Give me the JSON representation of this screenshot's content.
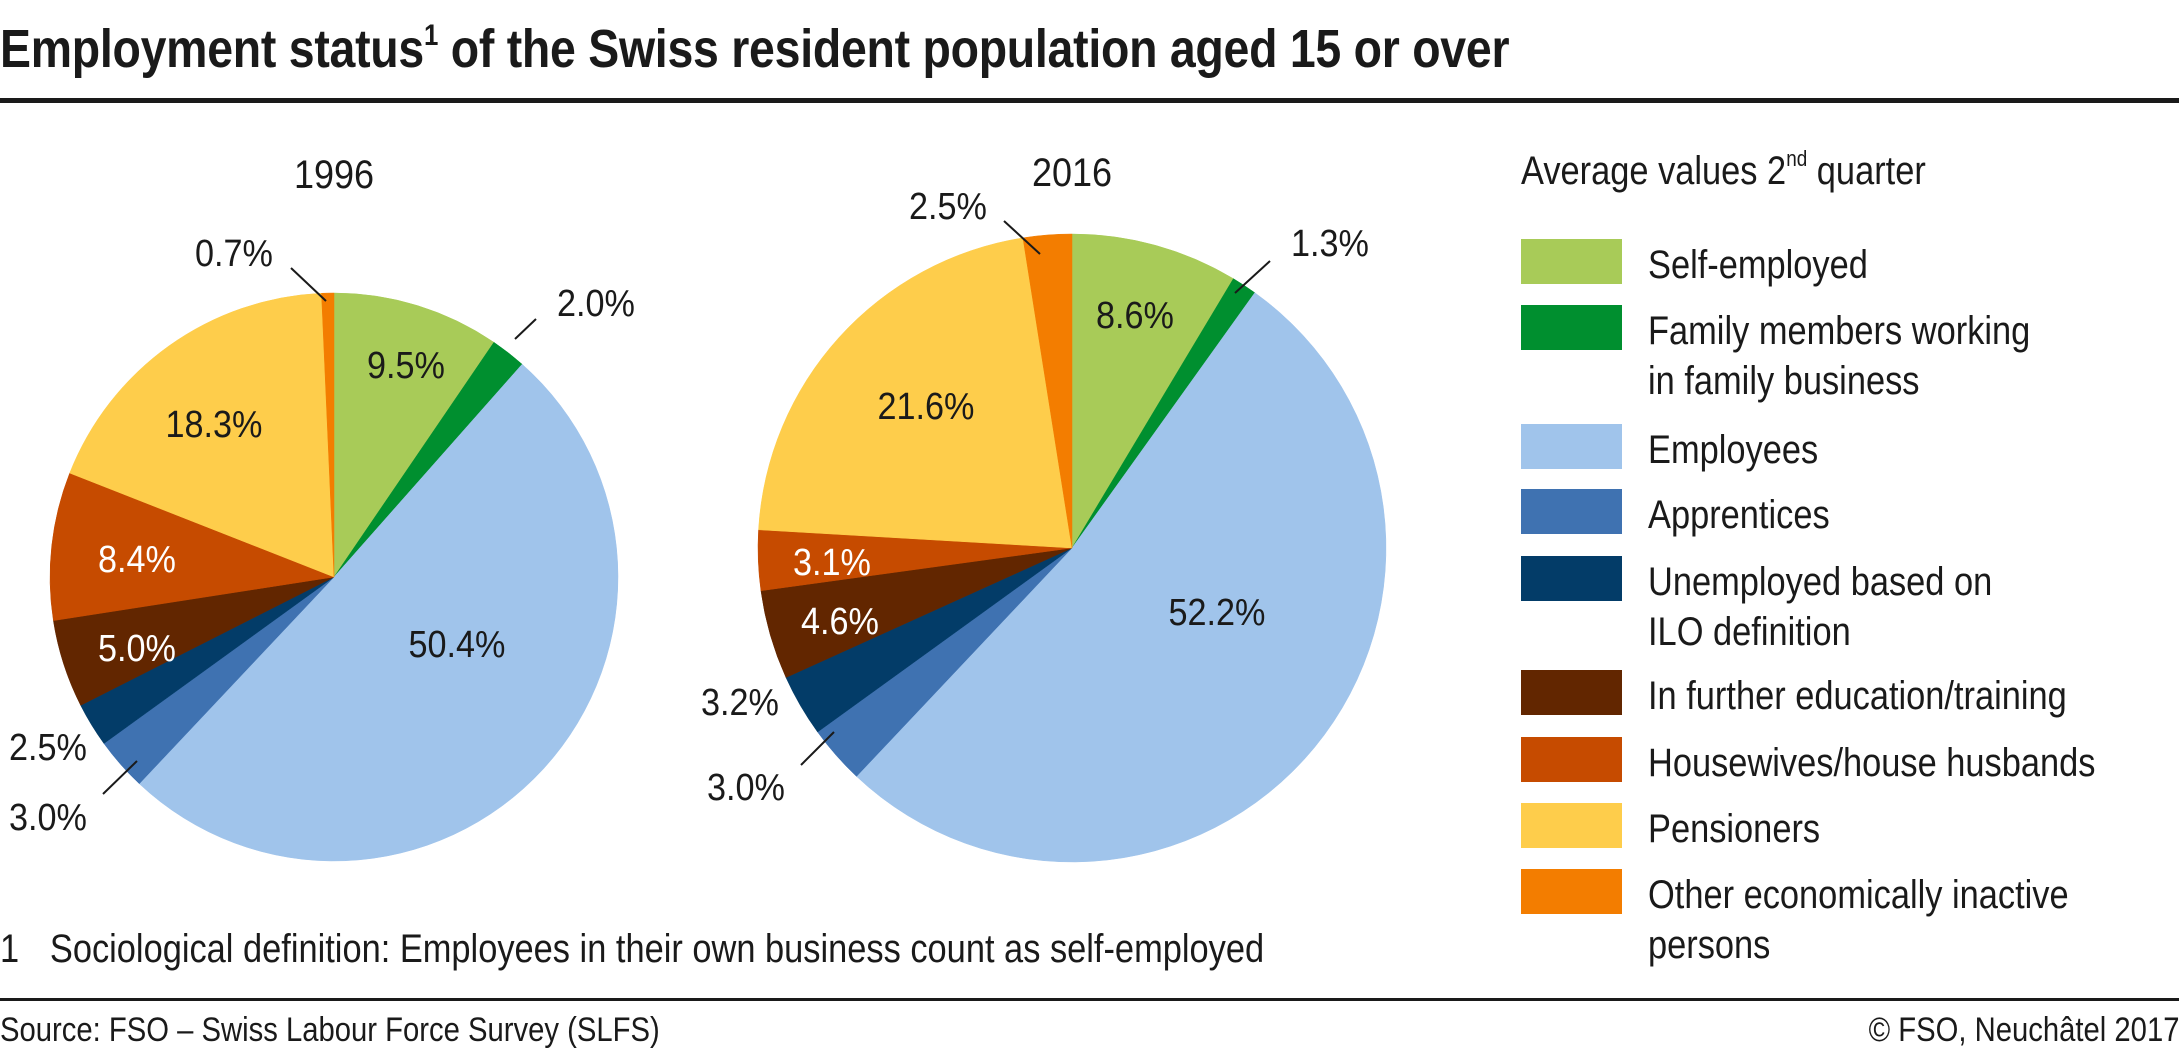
{
  "header": {
    "title_main": "Employment status",
    "title_sup": "1",
    "title_rest": " of the Swiss resident population aged 15 or over"
  },
  "legend": {
    "title_pre": "Average values 2",
    "title_sup": "nd",
    "title_post": " quarter"
  },
  "footnote": {
    "number": "1",
    "text": "Sociological definition: Employees in their own business count as self-employed"
  },
  "footer": {
    "source": "Source: FSO – Swiss Labour Force Survey (SLFS)",
    "copyright": "© FSO, Neuchâtel 2017"
  },
  "chart_data": {
    "type": "pie",
    "title": "Employment status of the Swiss resident population aged 15 or over",
    "subtitle": "Average values 2nd quarter",
    "unit": "%",
    "legend_position": "right",
    "categories": [
      {
        "key": "self_employed",
        "label": "Self-employed",
        "color": "#a8cb58"
      },
      {
        "key": "family_members",
        "label": "Family members working\nin family business",
        "color": "#008f2f"
      },
      {
        "key": "employees",
        "label": "Employees",
        "color": "#a0c4eb"
      },
      {
        "key": "apprentices",
        "label": "Apprentices",
        "color": "#3f72b1"
      },
      {
        "key": "unemployed_ilo",
        "label": "Unemployed based on\nILO definition",
        "color": "#033c68"
      },
      {
        "key": "further_education",
        "label": "In further education/training",
        "color": "#622600"
      },
      {
        "key": "housewives",
        "label": "Housewives/house husbands",
        "color": "#c64b00"
      },
      {
        "key": "pensioners",
        "label": "Pensioners",
        "color": "#fecd4b"
      },
      {
        "key": "other_inactive",
        "label": "Other economically inactive\npersons",
        "color": "#f37d00"
      }
    ],
    "series": [
      {
        "name": "1996",
        "values": [
          9.5,
          2.0,
          50.4,
          3.0,
          2.5,
          5.0,
          8.4,
          18.3,
          0.7
        ],
        "labels": [
          "9.5%",
          "2.0%",
          "50.4%",
          "3.0%",
          "2.5%",
          "5.0%",
          "8.4%",
          "18.3%",
          "0.7%"
        ]
      },
      {
        "name": "2016",
        "values": [
          8.6,
          1.3,
          52.2,
          3.0,
          3.2,
          4.6,
          3.1,
          21.6,
          2.5
        ],
        "labels": [
          "8.6%",
          "1.3%",
          "52.2%",
          "3.0%",
          "3.2%",
          "4.6%",
          "3.1%",
          "21.6%",
          "2.5%"
        ]
      }
    ]
  }
}
